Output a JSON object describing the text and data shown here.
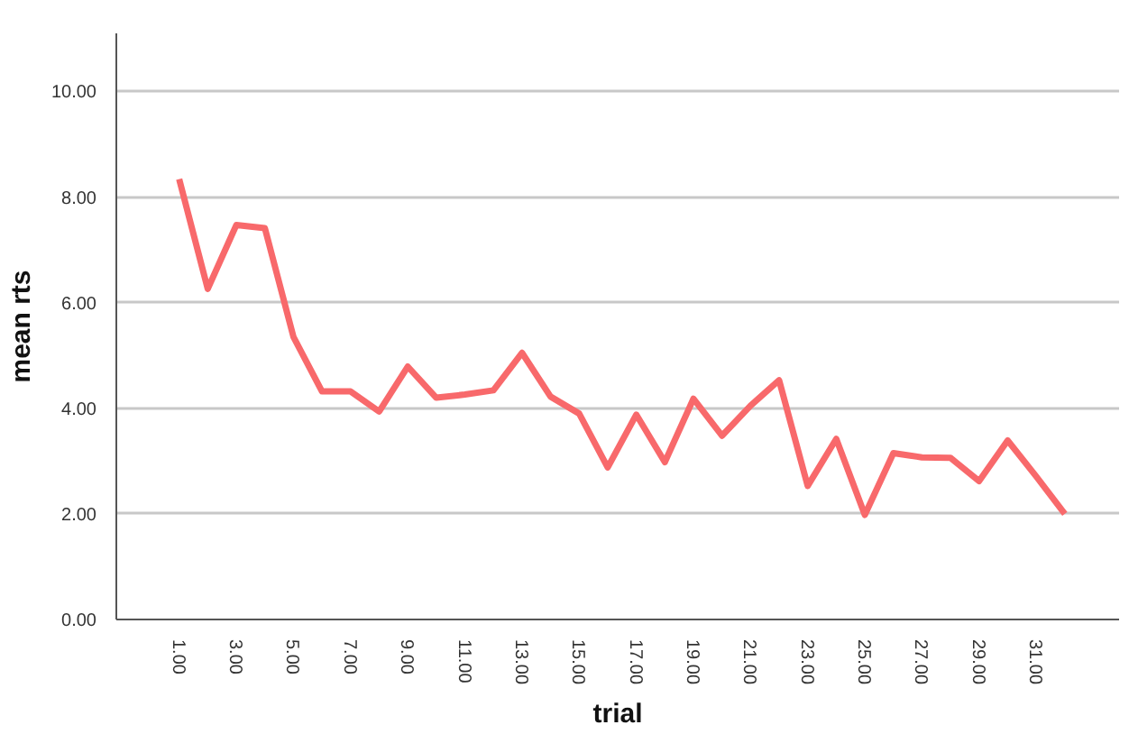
{
  "chart_data": {
    "type": "line",
    "xlabel": "trial",
    "ylabel": "mean rts",
    "categories": [
      "1.00",
      null,
      "3.00",
      null,
      "5.00",
      null,
      "7.00",
      null,
      "9.00",
      null,
      "11.00",
      null,
      "13.00",
      null,
      "15.00",
      null,
      "17.00",
      null,
      "19.00",
      null,
      "21.00",
      null,
      "23.00",
      null,
      "25.00",
      null,
      "27.00",
      null,
      "29.00",
      null,
      "31.00",
      null
    ],
    "series": [
      {
        "color": "#f8696b",
        "values": [
          8.34,
          6.26,
          7.47,
          7.41,
          5.35,
          4.32,
          4.32,
          3.94,
          4.79,
          4.2,
          4.26,
          4.34,
          5.05,
          4.22,
          3.9,
          2.88,
          3.88,
          2.98,
          4.18,
          3.48,
          4.05,
          4.53,
          2.53,
          3.42,
          1.98,
          3.15,
          3.07,
          3.06,
          2.62,
          3.39,
          2.71,
          2.0
        ]
      }
    ],
    "ylim": [
      0,
      11.1
    ],
    "yticks": [
      {
        "value": 0,
        "label": "0.00"
      },
      {
        "value": 2,
        "label": "2.00"
      },
      {
        "value": 4,
        "label": "4.00"
      },
      {
        "value": 6,
        "label": "6.00"
      },
      {
        "value": 8,
        "label": "8.00"
      },
      {
        "value": 10,
        "label": "10.00"
      }
    ],
    "grid": "y",
    "marker": "none",
    "line_style": "solid"
  }
}
